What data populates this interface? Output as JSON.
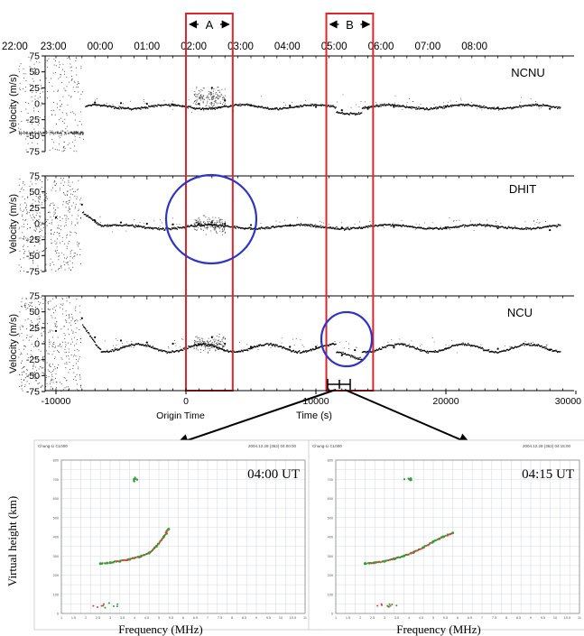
{
  "time_axis": {
    "ut_labels": [
      "UT 22:00",
      "23:00",
      "00:00",
      "01:00",
      "02:00",
      "03:00",
      "04:00",
      "05:00",
      "06:00",
      "07:00",
      "08:00"
    ],
    "ut_seconds": [
      -13800,
      -10200,
      -6600,
      -3000,
      600,
      4200,
      7800,
      11400,
      15000,
      18600,
      22200
    ],
    "x_ticks": [
      -10000,
      0,
      10000,
      20000,
      30000
    ],
    "x_tick_labels": [
      "-10000",
      "0",
      "10000",
      "20000",
      "30000"
    ],
    "xlabel": "Time (s)",
    "origin_label": "Origin Time"
  },
  "intervals": [
    {
      "label": "A",
      "start_s": 0,
      "end_s": 3600
    },
    {
      "label": "B",
      "start_s": 10800,
      "end_s": 14400
    }
  ],
  "chart_data": [
    {
      "type": "scatter",
      "panel": "NCNU",
      "ylabel": "Velocity (m/s)",
      "xlim": [
        -13000,
        30000
      ],
      "ylim": [
        -75,
        75
      ],
      "y_ticks": [
        75,
        50,
        25,
        0,
        -25,
        -50,
        -75
      ],
      "y_tick_labels": [
        "75",
        "50",
        "25",
        "0",
        "-25",
        "-50",
        "-75"
      ],
      "series": [
        {
          "x": [
            -7000,
            -5000,
            -3000,
            -1000,
            1000,
            2000,
            3000,
            5000,
            8000,
            10000,
            12000,
            14000,
            16000,
            20000,
            24000,
            28000
          ],
          "y": [
            2,
            1,
            0,
            -1,
            0,
            25,
            5,
            -2,
            -3,
            -5,
            -10,
            -8,
            -5,
            -5,
            -6,
            -8
          ]
        }
      ]
    },
    {
      "type": "scatter",
      "panel": "DHIT",
      "ylabel": "Velocity (m/s)",
      "xlim": [
        -13000,
        30000
      ],
      "ylim": [
        -75,
        75
      ],
      "y_ticks": [
        75,
        50,
        25,
        0,
        -25,
        -50,
        -75
      ],
      "y_tick_labels": [
        "75",
        "50",
        "25",
        "0",
        "-25",
        "-50",
        "-75"
      ],
      "series": [
        {
          "x": [
            -10000,
            -8000,
            -7000,
            -5000,
            -3000,
            -1000,
            1000,
            2000,
            3000,
            5000,
            8000,
            12000,
            16000,
            20000,
            24000,
            28000
          ],
          "y": [
            10,
            30,
            5,
            2,
            0,
            -1,
            0,
            2,
            0,
            -2,
            -3,
            -6,
            -5,
            -6,
            -7,
            -10
          ]
        }
      ]
    },
    {
      "type": "scatter",
      "panel": "NCU",
      "ylabel": "Velocity (m/s)",
      "xlim": [
        -13000,
        30000
      ],
      "ylim": [
        -75,
        75
      ],
      "y_ticks": [
        75,
        50,
        25,
        0,
        -25,
        -50,
        -75
      ],
      "y_tick_labels": [
        "75",
        "50",
        "25",
        "0",
        "-25",
        "-50",
        "-75"
      ],
      "series": [
        {
          "x": [
            -10000,
            -8000,
            -7000,
            -5000,
            -3000,
            -1000,
            1000,
            2000,
            3000,
            5000,
            8000,
            10000,
            12000,
            13000,
            16000,
            20000,
            24000,
            28000
          ],
          "y": [
            20,
            40,
            10,
            5,
            2,
            0,
            -2,
            10,
            0,
            -5,
            -5,
            -5,
            -18,
            -10,
            -6,
            -8,
            -8,
            -10
          ]
        }
      ]
    },
    {
      "type": "scatter",
      "panel": "ionogram-0400",
      "time_label": "04:00 UT",
      "ylabel": "Virtual height (km)",
      "xlabel": "Frequency (MHz)",
      "header_left": "Chung-Li  CL000",
      "header_right": "2004.12.28  (363) 04:00:00",
      "series": [
        {
          "x": [
            2.6,
            3.0,
            3.4,
            3.8,
            4.2,
            4.6,
            4.9,
            5.2,
            5.4
          ],
          "y": [
            260,
            265,
            272,
            282,
            295,
            315,
            350,
            400,
            440
          ]
        }
      ]
    },
    {
      "type": "scatter",
      "panel": "ionogram-0415",
      "time_label": "04:15 UT",
      "ylabel": "Virtual height (km)",
      "xlabel": "Frequency (MHz)",
      "header_left": "Chung-Li  CL000",
      "header_right": "2004.12.28  (363) 04:15:00",
      "series": [
        {
          "x": [
            2.2,
            2.6,
            3.0,
            3.4,
            3.8,
            4.2,
            4.6,
            5.0,
            5.4,
            5.8
          ],
          "y": [
            260,
            265,
            272,
            285,
            300,
            320,
            345,
            375,
            400,
            420
          ]
        }
      ]
    }
  ],
  "colors": {
    "box": "#e0262a",
    "circle": "#2d35c8",
    "trace": "#000000",
    "iono_red": "#e23a3a",
    "iono_green": "#2ea12e",
    "iono_grid": "#d7dbe6"
  }
}
